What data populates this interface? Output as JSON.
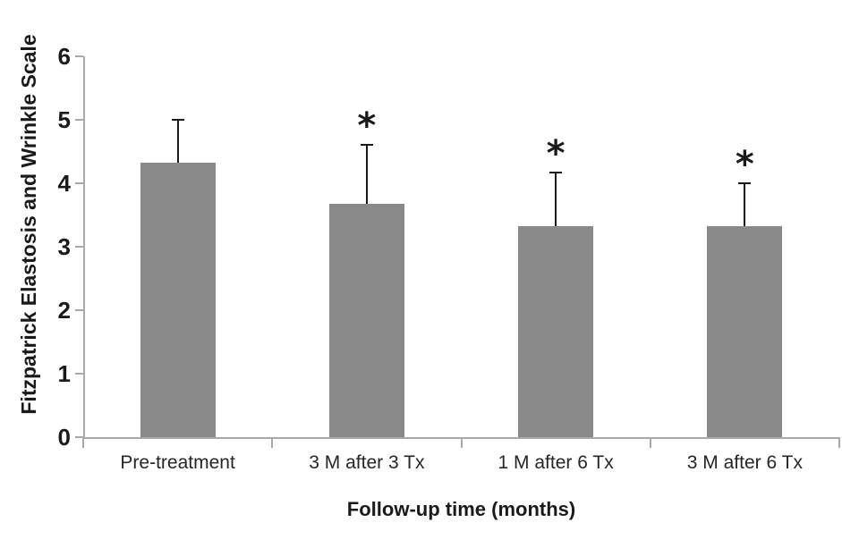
{
  "figure": {
    "background_color": "#ffffff",
    "bar_color": "#898989",
    "axis_color": "#a8a8a8",
    "error_bar_color": "#1a1a1a",
    "text_color": "#1a1a1a",
    "x_label_color": "#262626"
  },
  "chart_data": {
    "type": "bar",
    "title": "",
    "xlabel": "Follow-up time (months)",
    "ylabel": "Fitzpatrick Elastosis and Wrinkle Scale",
    "categories": [
      "Pre-treatment",
      "3 M after 3 Tx",
      "1 M after 6 Tx",
      "3 M after 6 Tx"
    ],
    "values": [
      4.33,
      3.67,
      3.33,
      3.33
    ],
    "error_upper": [
      0.67,
      0.93,
      0.84,
      0.67
    ],
    "error_bar_tops": [
      5.0,
      4.6,
      4.17,
      4.0
    ],
    "significance": [
      false,
      true,
      true,
      true
    ],
    "significance_marker": "*",
    "ylim": [
      0,
      6
    ],
    "yticks": [
      0,
      1,
      2,
      3,
      4,
      5,
      6
    ],
    "grid": false,
    "legend": false
  }
}
